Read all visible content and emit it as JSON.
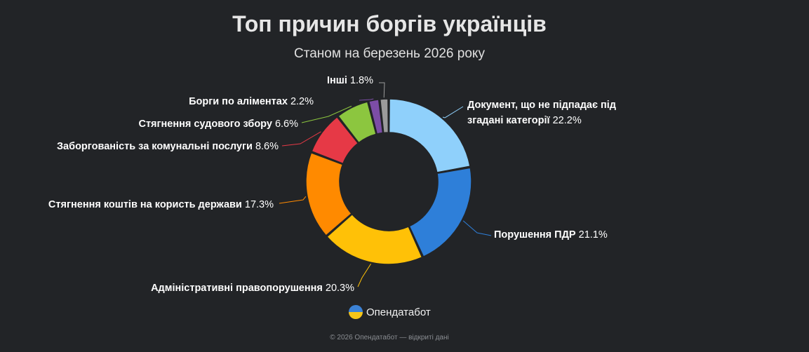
{
  "chart_data": {
    "type": "pie",
    "title": "Топ причин боргів українців",
    "subtitle": "Станом на березень 2026 року",
    "series": [
      {
        "label": "Документ, що не підпадає під згадані категорії",
        "label_lines": [
          "Документ, що не підпадає під",
          "згадані категорії"
        ],
        "value": 22.2,
        "value_text": "22.2%",
        "color": "#8fd0fb"
      },
      {
        "label": "Порушення ПДР",
        "label_lines": [
          "Порушення ПДР"
        ],
        "value": 21.1,
        "value_text": "21.1%",
        "color": "#2e7fd9"
      },
      {
        "label": "Адміністративні правопорушення",
        "label_lines": [
          "Адміністративні правопорушення"
        ],
        "value": 20.3,
        "value_text": "20.3%",
        "color": "#ffc107"
      },
      {
        "label": "Стягнення коштів на користь держави",
        "label_lines": [
          "Стягнення коштів на користь держави"
        ],
        "value": 17.3,
        "value_text": "17.3%",
        "color": "#ff8a00"
      },
      {
        "label": "Заборгованість за комунальні послуги",
        "label_lines": [
          "Заборгованість за комунальні послуги"
        ],
        "value": 8.6,
        "value_text": "8.6%",
        "color": "#e63946"
      },
      {
        "label": "Стягнення судового збору",
        "label_lines": [
          "Стягнення судового збору"
        ],
        "value": 6.6,
        "value_text": "6.6%",
        "color": "#8cc63f"
      },
      {
        "label": "Борги по аліментах",
        "label_lines": [
          "Борги по аліментах"
        ],
        "value": 2.2,
        "value_text": "2.2%",
        "color": "#7c4da6"
      },
      {
        "label": "Інші",
        "label_lines": [
          "Інші"
        ],
        "value": 1.8,
        "value_text": "1.8%",
        "color": "#9b9b9b"
      }
    ]
  },
  "brand": {
    "name": "Опендатабот"
  },
  "footer": {
    "text": "© 2026 Опендатабот — відкриті дані"
  }
}
